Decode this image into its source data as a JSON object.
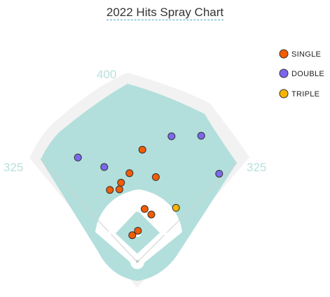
{
  "chart_data": {
    "type": "scatter",
    "title": "2022 Hits Spray Chart",
    "distance_labels": {
      "left": "325",
      "center": "400",
      "right": "325"
    },
    "colors": {
      "field": "#b2dfdb",
      "outer_track": "#f2f2f2",
      "infield_dirt": "#ffffff",
      "lines": "#cccccc",
      "SINGLE": "#f25c05",
      "DOUBLE": "#7b68ee",
      "TRIPLE": "#f5b400"
    },
    "series": [
      {
        "name": "SINGLE",
        "color": "#f25c05",
        "points": [
          {
            "x": -9,
            "y": 48
          },
          {
            "x": 13,
            "y": 95
          },
          {
            "x": 1,
            "y": 56
          },
          {
            "x": 25,
            "y": 85
          },
          {
            "x": 33,
            "y": 152
          },
          {
            "x": -29,
            "y": 142
          },
          {
            "x": -32,
            "y": 130
          },
          {
            "x": -49,
            "y": 129
          },
          {
            "x": -14,
            "y": 159
          },
          {
            "x": 9,
            "y": 201
          }
        ]
      },
      {
        "name": "DOUBLE",
        "color": "#7b68ee",
        "points": [
          {
            "x": -59,
            "y": 170
          },
          {
            "x": -106,
            "y": 187
          },
          {
            "x": 61,
            "y": 225
          },
          {
            "x": 114,
            "y": 226
          },
          {
            "x": 146,
            "y": 158
          }
        ]
      },
      {
        "name": "TRIPLE",
        "color": "#f5b400",
        "points": [
          {
            "x": 69,
            "y": 97
          }
        ]
      }
    ],
    "legend": {
      "placement": "top-right",
      "entries": [
        "SINGLE",
        "DOUBLE",
        "TRIPLE"
      ]
    },
    "grid": false
  }
}
